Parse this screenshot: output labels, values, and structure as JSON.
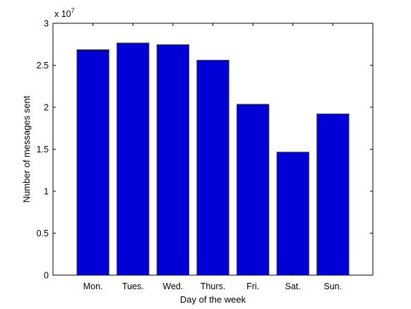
{
  "chart_data": {
    "type": "bar",
    "title": "",
    "xlabel": "Day of the week",
    "ylabel": "Number of messages sent",
    "categories": [
      "Mon.",
      "Tues.",
      "Wed.",
      "Thurs.",
      "Fri.",
      "Sat.",
      "Sun."
    ],
    "values": [
      26850000,
      27650000,
      27450000,
      25600000,
      20350000,
      14650000,
      19200000
    ],
    "ylim": [
      0,
      30000000
    ],
    "y_ticks": [
      0,
      0.5,
      1,
      1.5,
      2,
      2.5,
      3
    ],
    "y_tick_labels": [
      "0",
      "0.5",
      "1",
      "1.5",
      "2",
      "2.5",
      "3"
    ],
    "y_multiplier": "x 10",
    "y_multiplier_exponent": "7",
    "grid": false,
    "bar_color": "#0000d6",
    "bar_edge_color": "#3a3a3a"
  }
}
